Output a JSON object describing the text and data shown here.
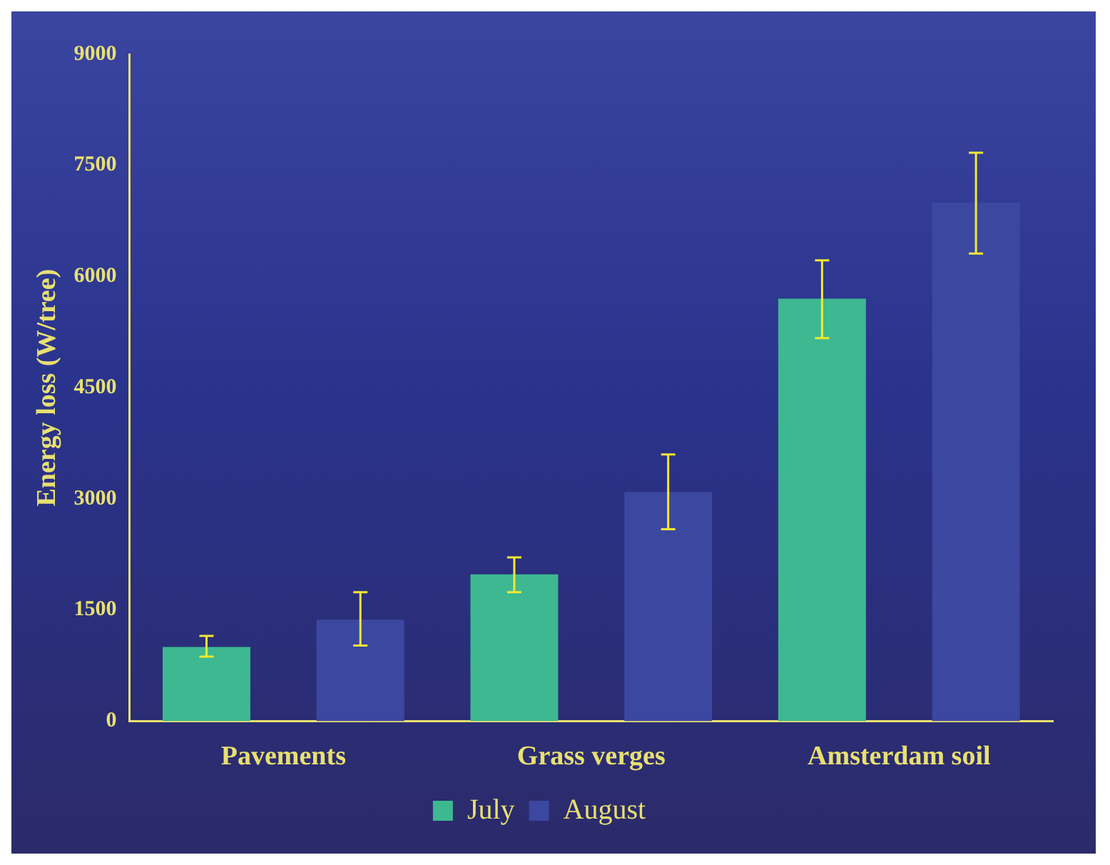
{
  "chart_data": {
    "type": "bar",
    "ylabel": "Energy loss (W/tree)",
    "categories": [
      "Pavements",
      "Grass verges",
      "Amsterdam soil"
    ],
    "series": [
      {
        "name": "July",
        "color": "#3db891",
        "values": [
          1000,
          1980,
          5700
        ],
        "errors": [
          [
            870,
            1150
          ],
          [
            1740,
            2210
          ],
          [
            5170,
            6220
          ]
        ]
      },
      {
        "name": "August",
        "color": "#3c47a0",
        "values": [
          1370,
          3090,
          7000
        ],
        "errors": [
          [
            1020,
            1740
          ],
          [
            2590,
            3600
          ],
          [
            6310,
            7670
          ]
        ]
      }
    ],
    "ylim": [
      0,
      9000
    ],
    "yticks": [
      0,
      1500,
      3000,
      4500,
      6000,
      7500,
      9000
    ],
    "grid": false,
    "legend": "bottom"
  }
}
